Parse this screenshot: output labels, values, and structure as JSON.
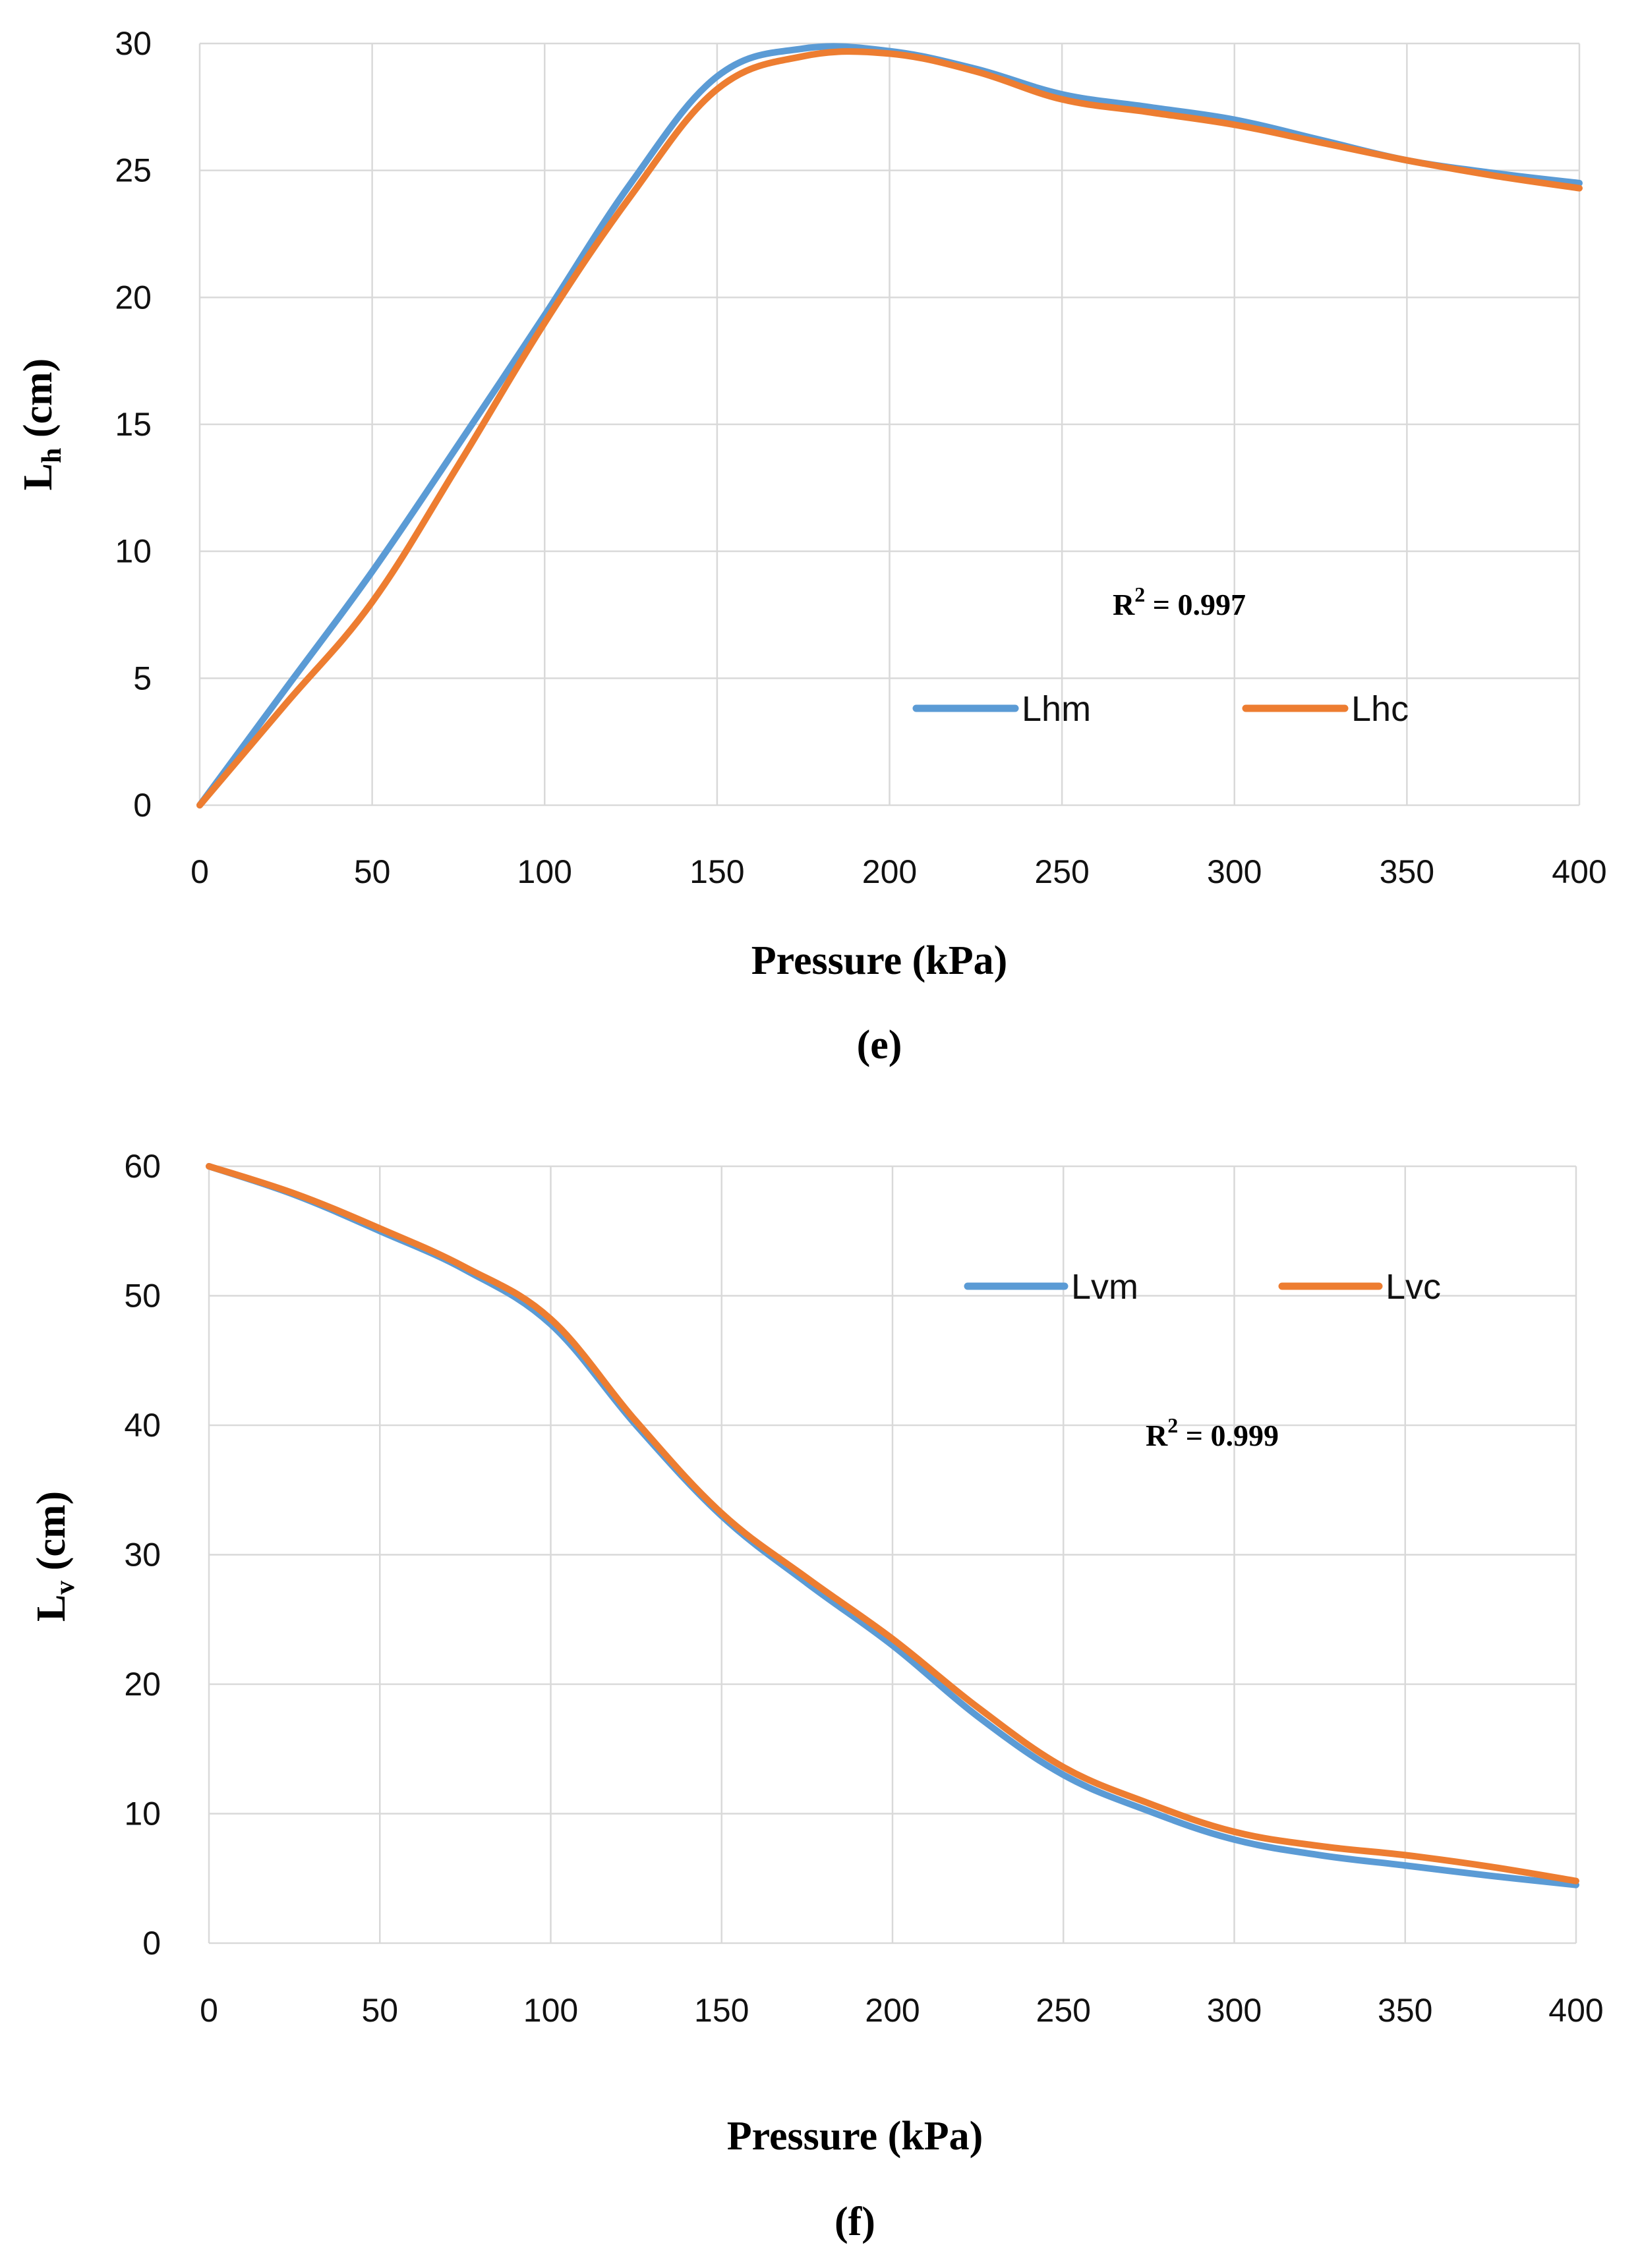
{
  "chart_data": [
    {
      "id": "e",
      "type": "line",
      "caption": "(e)",
      "xlabel": "Pressure (kPa)",
      "ylabel": {
        "main": "L",
        "sub": "h",
        "unit": " (cm)"
      },
      "xlim": [
        0,
        400
      ],
      "ylim": [
        0,
        30
      ],
      "xticks": [
        0,
        50,
        100,
        150,
        200,
        250,
        300,
        350,
        400
      ],
      "yticks": [
        0,
        5,
        10,
        15,
        20,
        25,
        30
      ],
      "grid": true,
      "legend_position": "lower-right",
      "annotation": {
        "prefix": "R",
        "sup": "2",
        "suffix": " = 0.997"
      },
      "series": [
        {
          "name": "Lhm",
          "color": "#5b9bd5",
          "x": [
            0,
            25,
            50,
            75,
            100,
            125,
            150,
            175,
            200,
            225,
            250,
            275,
            300,
            325,
            350,
            375,
            400
          ],
          "y": [
            0,
            4.6,
            9.2,
            14.2,
            19.3,
            24.5,
            28.7,
            29.8,
            29.7,
            29.0,
            28.0,
            27.5,
            27.0,
            26.2,
            25.4,
            24.9,
            24.5
          ]
        },
        {
          "name": "Lhc",
          "color": "#ed7d31",
          "x": [
            0,
            25,
            50,
            75,
            100,
            125,
            150,
            175,
            200,
            225,
            250,
            275,
            300,
            325,
            350,
            375,
            400
          ],
          "y": [
            0,
            4.0,
            8.0,
            13.4,
            19.0,
            24.0,
            28.2,
            29.5,
            29.6,
            28.9,
            27.8,
            27.3,
            26.8,
            26.1,
            25.4,
            24.8,
            24.3
          ]
        }
      ]
    },
    {
      "id": "f",
      "type": "line",
      "caption": "(f)",
      "xlabel": "Pressure (kPa)",
      "ylabel": {
        "main": "L",
        "sub": "v",
        "unit": " (cm)"
      },
      "xlim": [
        0,
        400
      ],
      "ylim": [
        0,
        60
      ],
      "xticks": [
        0,
        50,
        100,
        150,
        200,
        250,
        300,
        350,
        400
      ],
      "yticks": [
        0,
        10,
        20,
        30,
        40,
        50,
        60
      ],
      "grid": true,
      "legend_position": "upper-right",
      "annotation": {
        "prefix": "R",
        "sup": "2",
        "suffix": " = 0.999"
      },
      "series": [
        {
          "name": "Lvm",
          "color": "#5b9bd5",
          "x": [
            0,
            25,
            50,
            75,
            100,
            125,
            150,
            175,
            200,
            225,
            250,
            275,
            300,
            325,
            350,
            375,
            400
          ],
          "y": [
            60,
            57.8,
            55.0,
            52.0,
            47.8,
            40.0,
            33.0,
            27.8,
            23.0,
            17.5,
            13.0,
            10.2,
            8.0,
            6.8,
            6.0,
            5.2,
            4.5
          ]
        },
        {
          "name": "Lvc",
          "color": "#ed7d31",
          "x": [
            0,
            25,
            50,
            75,
            100,
            125,
            150,
            175,
            200,
            225,
            250,
            275,
            300,
            325,
            350,
            375,
            400
          ],
          "y": [
            60,
            57.9,
            55.2,
            52.2,
            48.2,
            40.3,
            33.2,
            28.2,
            23.5,
            18.2,
            13.6,
            10.8,
            8.6,
            7.5,
            6.8,
            5.9,
            4.8
          ]
        }
      ]
    }
  ]
}
